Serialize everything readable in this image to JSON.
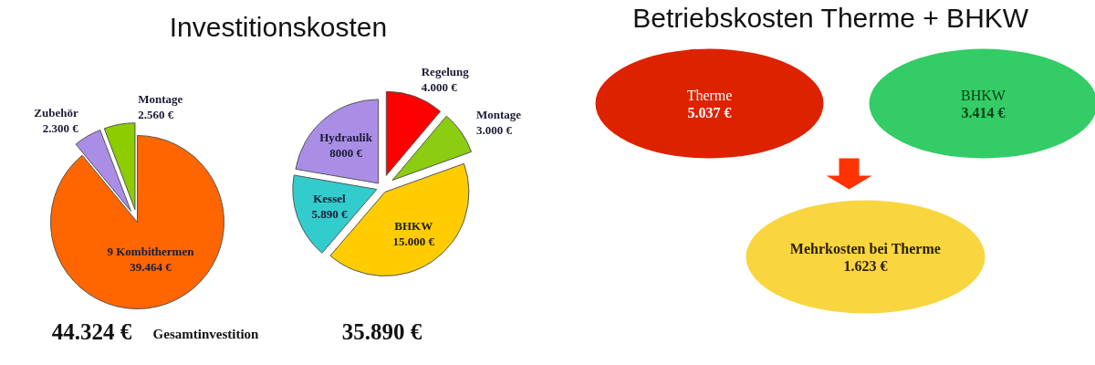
{
  "chart_data": [
    {
      "type": "pie",
      "title": "Investitionskosten",
      "categories": [
        "9 Kombithermen",
        "Zubehör",
        "Montage"
      ],
      "values": [
        39464,
        2300,
        2560
      ],
      "value_labels": [
        "39.464 €",
        "2.300 €",
        "2.560 €"
      ],
      "colors": [
        "#ff6600",
        "#aa8ee6",
        "#8ccc00"
      ],
      "annotations": [
        "44.324 €",
        "Gesamtinvestition"
      ]
    },
    {
      "type": "pie",
      "categories": [
        "Regelung",
        "Montage",
        "BHKW",
        "Kessel",
        "Hydraulik"
      ],
      "values": [
        4000,
        3000,
        15000,
        5890,
        8000
      ],
      "value_labels": [
        "4.000 €",
        "3.000 €",
        "15.000 €",
        "5.890 €",
        "8000 €"
      ],
      "colors": [
        "#ff0000",
        "#8ccc11",
        "#ffcc00",
        "#33cccc",
        "#aa8ee6"
      ],
      "annotations": [
        "35.890 €"
      ]
    },
    {
      "type": "other",
      "title": "Betriebskosten Therme + BHKW",
      "categories": [
        "Therme",
        "BHKW",
        "Mehrkosten bei Therme"
      ],
      "values": [
        5037,
        3414,
        1623
      ],
      "value_labels": [
        "5.037 €",
        "3.414 €",
        "1.623 €"
      ],
      "colors": [
        "#dd2200",
        "#33cc66",
        "#f9d640"
      ]
    }
  ]
}
